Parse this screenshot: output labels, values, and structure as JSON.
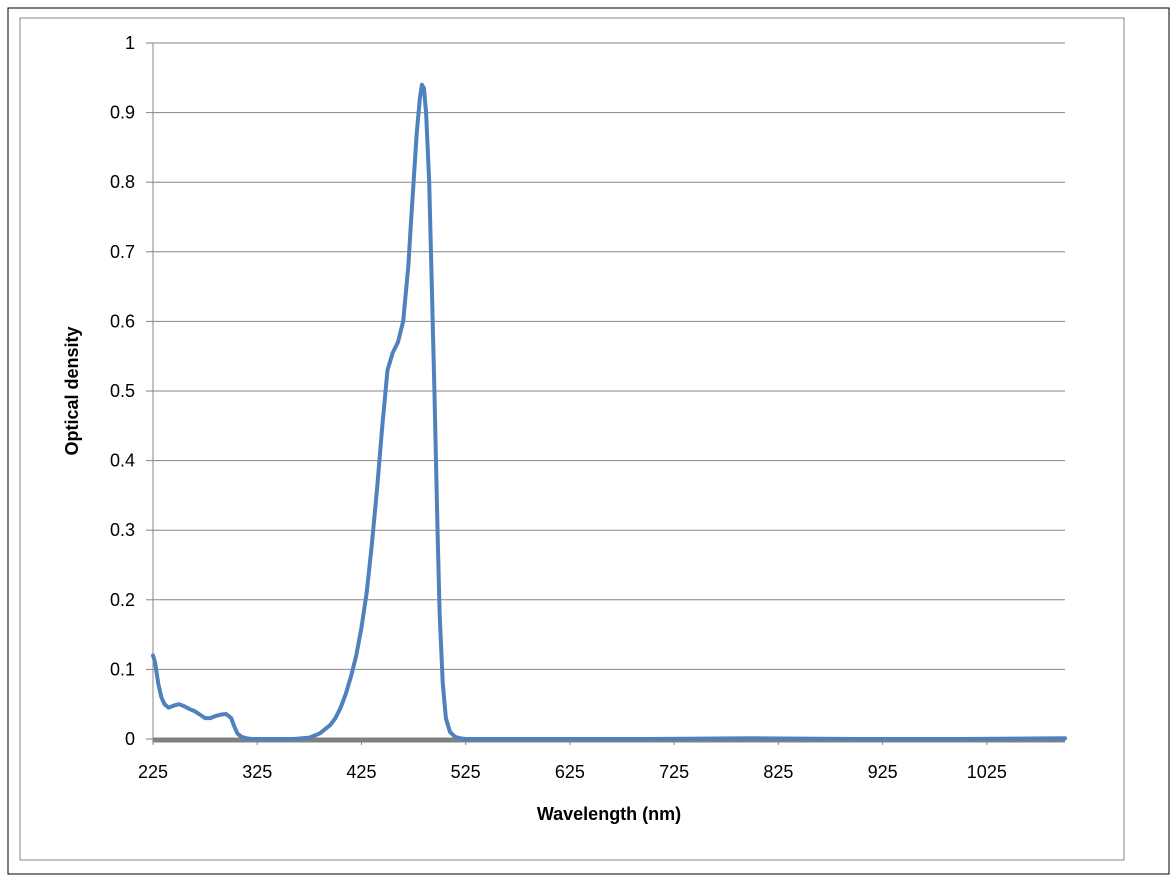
{
  "chart_data": {
    "type": "line",
    "title": "",
    "xlabel": "Wavelength (nm)",
    "ylabel": "Optical density",
    "xlim": [
      225,
      1100
    ],
    "ylim": [
      0,
      1
    ],
    "x_ticks": [
      "225",
      "325",
      "425",
      "525",
      "625",
      "725",
      "825",
      "925",
      "1025"
    ],
    "y_ticks": [
      "0",
      "0.1",
      "0.2",
      "0.3",
      "0.4",
      "0.5",
      "0.6",
      "0.7",
      "0.8",
      "0.9",
      "1"
    ],
    "grid": "horizontal",
    "legend": "none",
    "line_color": "#4f81bd",
    "baseline_color": "#808080",
    "series": [
      {
        "x": [
          225,
          227,
          230,
          233,
          236,
          240,
          245,
          250,
          255,
          260,
          265,
          270,
          275,
          280,
          285,
          290,
          295,
          300,
          303,
          306,
          310,
          315,
          320,
          325,
          340,
          360,
          375,
          385,
          395,
          400,
          405,
          410,
          415,
          420,
          425,
          430,
          435,
          440,
          445,
          450,
          455,
          460,
          465,
          470,
          472,
          475,
          478,
          481,
          483,
          485,
          487,
          490,
          492,
          495,
          498,
          500,
          503,
          506,
          510,
          515,
          520,
          525,
          550,
          600,
          700,
          800,
          900,
          1000,
          1100
        ],
        "y": [
          0.12,
          0.11,
          0.08,
          0.06,
          0.05,
          0.045,
          0.048,
          0.05,
          0.047,
          0.043,
          0.04,
          0.035,
          0.03,
          0.03,
          0.033,
          0.035,
          0.036,
          0.03,
          0.018,
          0.008,
          0.003,
          0.001,
          0.0,
          0.0,
          0.0,
          0.0,
          0.002,
          0.008,
          0.02,
          0.03,
          0.045,
          0.065,
          0.09,
          0.12,
          0.16,
          0.21,
          0.28,
          0.36,
          0.45,
          0.53,
          0.555,
          0.57,
          0.6,
          0.68,
          0.73,
          0.8,
          0.87,
          0.92,
          0.94,
          0.935,
          0.9,
          0.8,
          0.68,
          0.5,
          0.3,
          0.18,
          0.08,
          0.03,
          0.01,
          0.003,
          0.001,
          0.0,
          0.0,
          0.0,
          0.0,
          0.001,
          0.0,
          0.0,
          0.001
        ]
      }
    ]
  }
}
